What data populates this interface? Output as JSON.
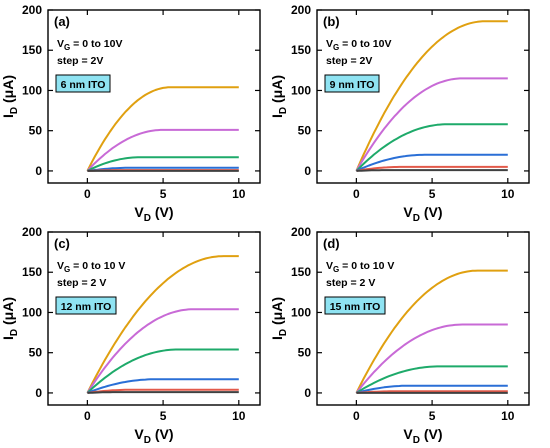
{
  "colors": {
    "VG=10V": "#e0a010",
    "VG=8V": "#c86ad6",
    "VG=6V": "#1eaa6a",
    "VG=4V": "#2a6fd6",
    "VG=2V": "#e35a4a",
    "VG=0V": "#404040",
    "badge_fill": "#8fe3f2"
  },
  "chart_data": [
    {
      "type": "line",
      "panel": "(a)",
      "annotation_line1_main": "V",
      "annotation_line1_sub": "G",
      "annotation_line1_rest": " = 0 to 10V",
      "annotation_line2": "step = 2V",
      "badge": "6 nm ITO",
      "xlabel_main": "V",
      "xlabel_sub": "D",
      "xlabel_rest": " (V)",
      "ylabel_main": "I",
      "ylabel_sub": "D",
      "ylabel_rest": " (μA)",
      "xlim": [
        -2.6,
        11.4
      ],
      "ylim": [
        -15,
        200
      ],
      "xticks": [
        0,
        5,
        10
      ],
      "yticks": [
        0,
        50,
        100,
        150,
        200
      ],
      "series": [
        {
          "key": "VG=10V",
          "saturation": 104,
          "vdsat": 5.5
        },
        {
          "key": "VG=8V",
          "saturation": 51,
          "vdsat": 5.0
        },
        {
          "key": "VG=6V",
          "saturation": 17,
          "vdsat": 3.5
        },
        {
          "key": "VG=4V",
          "saturation": 4,
          "vdsat": 3.0
        },
        {
          "key": "VG=2V",
          "saturation": 1,
          "vdsat": 2.0
        },
        {
          "key": "VG=0V",
          "saturation": 0,
          "vdsat": 2.0
        }
      ]
    },
    {
      "type": "line",
      "panel": "(b)",
      "annotation_line1_main": "V",
      "annotation_line1_sub": "G",
      "annotation_line1_rest": " = 0 to 10V",
      "annotation_line2": "step = 2V",
      "badge": "9 nm ITO",
      "xlabel_main": "V",
      "xlabel_sub": "D",
      "xlabel_rest": " (V)",
      "ylabel_main": "I",
      "ylabel_sub": "D",
      "ylabel_rest": " (μA)",
      "xlim": [
        -2.6,
        11.4
      ],
      "ylim": [
        -15,
        200
      ],
      "xticks": [
        0,
        5,
        10
      ],
      "yticks": [
        0,
        50,
        100,
        150,
        200
      ],
      "series": [
        {
          "key": "VG=10V",
          "saturation": 186,
          "vdsat": 8.5
        },
        {
          "key": "VG=8V",
          "saturation": 115,
          "vdsat": 7.0
        },
        {
          "key": "VG=6V",
          "saturation": 58,
          "vdsat": 6.0
        },
        {
          "key": "VG=4V",
          "saturation": 20,
          "vdsat": 4.5
        },
        {
          "key": "VG=2V",
          "saturation": 5,
          "vdsat": 3.0
        },
        {
          "key": "VG=0V",
          "saturation": 1,
          "vdsat": 2.0
        }
      ]
    },
    {
      "type": "line",
      "panel": "(c)",
      "annotation_line1_main": "V",
      "annotation_line1_sub": "G",
      "annotation_line1_rest": " = 0 to 10 V",
      "annotation_line2": "step = 2 V",
      "badge": "12 nm ITO",
      "xlabel_main": "V",
      "xlabel_sub": "D",
      "xlabel_rest": " (V)",
      "ylabel_main": "I",
      "ylabel_sub": "D",
      "ylabel_rest": " (μA)",
      "xlim": [
        -2.6,
        11.4
      ],
      "ylim": [
        -15,
        200
      ],
      "xticks": [
        0,
        5,
        10
      ],
      "yticks": [
        0,
        50,
        100,
        150,
        200
      ],
      "series": [
        {
          "key": "VG=10V",
          "saturation": 170,
          "vdsat": 9.0
        },
        {
          "key": "VG=8V",
          "saturation": 104,
          "vdsat": 7.0
        },
        {
          "key": "VG=6V",
          "saturation": 54,
          "vdsat": 6.0
        },
        {
          "key": "VG=4V",
          "saturation": 17,
          "vdsat": 4.5
        },
        {
          "key": "VG=2V",
          "saturation": 4,
          "vdsat": 3.0
        },
        {
          "key": "VG=0V",
          "saturation": 1,
          "vdsat": 2.0
        }
      ]
    },
    {
      "type": "line",
      "panel": "(d)",
      "annotation_line1_main": "V",
      "annotation_line1_sub": "G",
      "annotation_line1_rest": " = 0 to 10 V",
      "annotation_line2": "step = 2 V",
      "badge": "15 nm ITO",
      "xlabel_main": "V",
      "xlabel_sub": "D",
      "xlabel_rest": " (V)",
      "ylabel_main": "I",
      "ylabel_sub": "D",
      "ylabel_rest": " (μA)",
      "xlim": [
        -2.6,
        11.4
      ],
      "ylim": [
        -15,
        200
      ],
      "xticks": [
        0,
        5,
        10
      ],
      "yticks": [
        0,
        50,
        100,
        150,
        200
      ],
      "series": [
        {
          "key": "VG=10V",
          "saturation": 152,
          "vdsat": 8.0
        },
        {
          "key": "VG=8V",
          "saturation": 85,
          "vdsat": 7.0
        },
        {
          "key": "VG=6V",
          "saturation": 33,
          "vdsat": 5.5
        },
        {
          "key": "VG=4V",
          "saturation": 9,
          "vdsat": 3.5
        },
        {
          "key": "VG=2V",
          "saturation": 2,
          "vdsat": 2.5
        },
        {
          "key": "VG=0V",
          "saturation": 0,
          "vdsat": 2.0
        }
      ]
    }
  ]
}
